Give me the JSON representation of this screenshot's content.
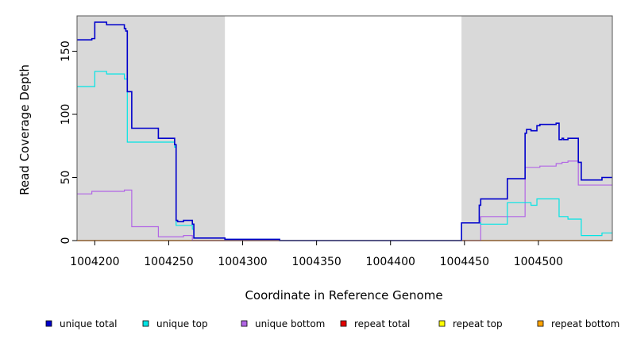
{
  "chart_data": {
    "type": "line",
    "title": "",
    "xlabel": "Coordinate in Reference Genome",
    "ylabel": "Read Coverage Depth",
    "xlim": [
      1004188,
      1004550
    ],
    "ylim": [
      0,
      178
    ],
    "xticks": [
      1004200,
      1004250,
      1004300,
      1004350,
      1004400,
      1004450,
      1004500
    ],
    "yticks": [
      0,
      50,
      100,
      150
    ],
    "shaded_regions": [
      [
        1004188,
        1004288
      ],
      [
        1004448,
        1004550
      ]
    ],
    "shade_color": "#d9d9d9",
    "legend_position": "bottom",
    "series": [
      {
        "name": "unique total",
        "color": "#0000cc",
        "points": [
          [
            1004188,
            159
          ],
          [
            1004198,
            159
          ],
          [
            1004198,
            160
          ],
          [
            1004200,
            160
          ],
          [
            1004200,
            173
          ],
          [
            1004208,
            173
          ],
          [
            1004208,
            171
          ],
          [
            1004220,
            171
          ],
          [
            1004220,
            168
          ],
          [
            1004221,
            168
          ],
          [
            1004221,
            166
          ],
          [
            1004222,
            166
          ],
          [
            1004222,
            118
          ],
          [
            1004225,
            118
          ],
          [
            1004225,
            89
          ],
          [
            1004243,
            89
          ],
          [
            1004243,
            81
          ],
          [
            1004254,
            81
          ],
          [
            1004254,
            76
          ],
          [
            1004255,
            76
          ],
          [
            1004255,
            16
          ],
          [
            1004256,
            16
          ],
          [
            1004256,
            15
          ],
          [
            1004260,
            15
          ],
          [
            1004260,
            16
          ],
          [
            1004266,
            16
          ],
          [
            1004266,
            13
          ],
          [
            1004267,
            13
          ],
          [
            1004267,
            2
          ],
          [
            1004288,
            2
          ],
          [
            1004288,
            1
          ],
          [
            1004325,
            1
          ],
          [
            1004325,
            0
          ],
          [
            1004448,
            0
          ],
          [
            1004448,
            14
          ],
          [
            1004460,
            14
          ],
          [
            1004460,
            28
          ],
          [
            1004461,
            28
          ],
          [
            1004461,
            33
          ],
          [
            1004479,
            33
          ],
          [
            1004479,
            49
          ],
          [
            1004491,
            49
          ],
          [
            1004491,
            85
          ],
          [
            1004492,
            85
          ],
          [
            1004492,
            88
          ],
          [
            1004495,
            88
          ],
          [
            1004495,
            87
          ],
          [
            1004499,
            87
          ],
          [
            1004499,
            91
          ],
          [
            1004501,
            91
          ],
          [
            1004501,
            92
          ],
          [
            1004512,
            92
          ],
          [
            1004512,
            93
          ],
          [
            1004514,
            93
          ],
          [
            1004514,
            80
          ],
          [
            1004516,
            80
          ],
          [
            1004516,
            81
          ],
          [
            1004517,
            81
          ],
          [
            1004517,
            80
          ],
          [
            1004520,
            80
          ],
          [
            1004520,
            81
          ],
          [
            1004527,
            81
          ],
          [
            1004527,
            62
          ],
          [
            1004529,
            62
          ],
          [
            1004529,
            48
          ],
          [
            1004543,
            48
          ],
          [
            1004543,
            50
          ],
          [
            1004550,
            50
          ]
        ]
      },
      {
        "name": "unique top",
        "color": "#00e5e5",
        "points": [
          [
            1004188,
            122
          ],
          [
            1004200,
            122
          ],
          [
            1004200,
            134
          ],
          [
            1004208,
            134
          ],
          [
            1004208,
            132
          ],
          [
            1004220,
            132
          ],
          [
            1004220,
            128
          ],
          [
            1004222,
            128
          ],
          [
            1004222,
            78
          ],
          [
            1004254,
            78
          ],
          [
            1004254,
            74
          ],
          [
            1004255,
            74
          ],
          [
            1004255,
            12
          ],
          [
            1004266,
            12
          ],
          [
            1004266,
            9
          ],
          [
            1004267,
            9
          ],
          [
            1004267,
            2
          ],
          [
            1004288,
            2
          ],
          [
            1004288,
            1
          ],
          [
            1004325,
            1
          ],
          [
            1004325,
            0
          ],
          [
            1004448,
            0
          ],
          [
            1004448,
            14
          ],
          [
            1004461,
            14
          ],
          [
            1004461,
            13
          ],
          [
            1004479,
            13
          ],
          [
            1004479,
            30
          ],
          [
            1004495,
            30
          ],
          [
            1004495,
            28
          ],
          [
            1004499,
            28
          ],
          [
            1004499,
            33
          ],
          [
            1004514,
            33
          ],
          [
            1004514,
            19
          ],
          [
            1004520,
            19
          ],
          [
            1004520,
            17
          ],
          [
            1004529,
            17
          ],
          [
            1004529,
            4
          ],
          [
            1004543,
            4
          ],
          [
            1004543,
            6
          ],
          [
            1004550,
            6
          ]
        ]
      },
      {
        "name": "unique bottom",
        "color": "#b266e5",
        "points": [
          [
            1004188,
            37
          ],
          [
            1004198,
            37
          ],
          [
            1004198,
            39
          ],
          [
            1004220,
            39
          ],
          [
            1004220,
            40
          ],
          [
            1004225,
            40
          ],
          [
            1004225,
            11
          ],
          [
            1004243,
            11
          ],
          [
            1004243,
            3
          ],
          [
            1004260,
            3
          ],
          [
            1004260,
            4
          ],
          [
            1004266,
            4
          ],
          [
            1004266,
            0
          ],
          [
            1004461,
            0
          ],
          [
            1004461,
            19
          ],
          [
            1004491,
            19
          ],
          [
            1004491,
            58
          ],
          [
            1004501,
            58
          ],
          [
            1004501,
            59
          ],
          [
            1004512,
            59
          ],
          [
            1004512,
            61
          ],
          [
            1004516,
            61
          ],
          [
            1004516,
            62
          ],
          [
            1004520,
            62
          ],
          [
            1004520,
            63
          ],
          [
            1004527,
            63
          ],
          [
            1004527,
            44
          ],
          [
            1004550,
            44
          ]
        ]
      },
      {
        "name": "repeat total",
        "color": "#e50000",
        "points": [
          [
            1004188,
            0
          ],
          [
            1004550,
            0
          ]
        ]
      },
      {
        "name": "repeat top",
        "color": "#ffff00",
        "points": [
          [
            1004188,
            0
          ],
          [
            1004550,
            0
          ]
        ]
      },
      {
        "name": "repeat bottom",
        "color": "#ffa500",
        "points": [
          [
            1004188,
            0
          ],
          [
            1004550,
            0
          ]
        ]
      }
    ]
  }
}
